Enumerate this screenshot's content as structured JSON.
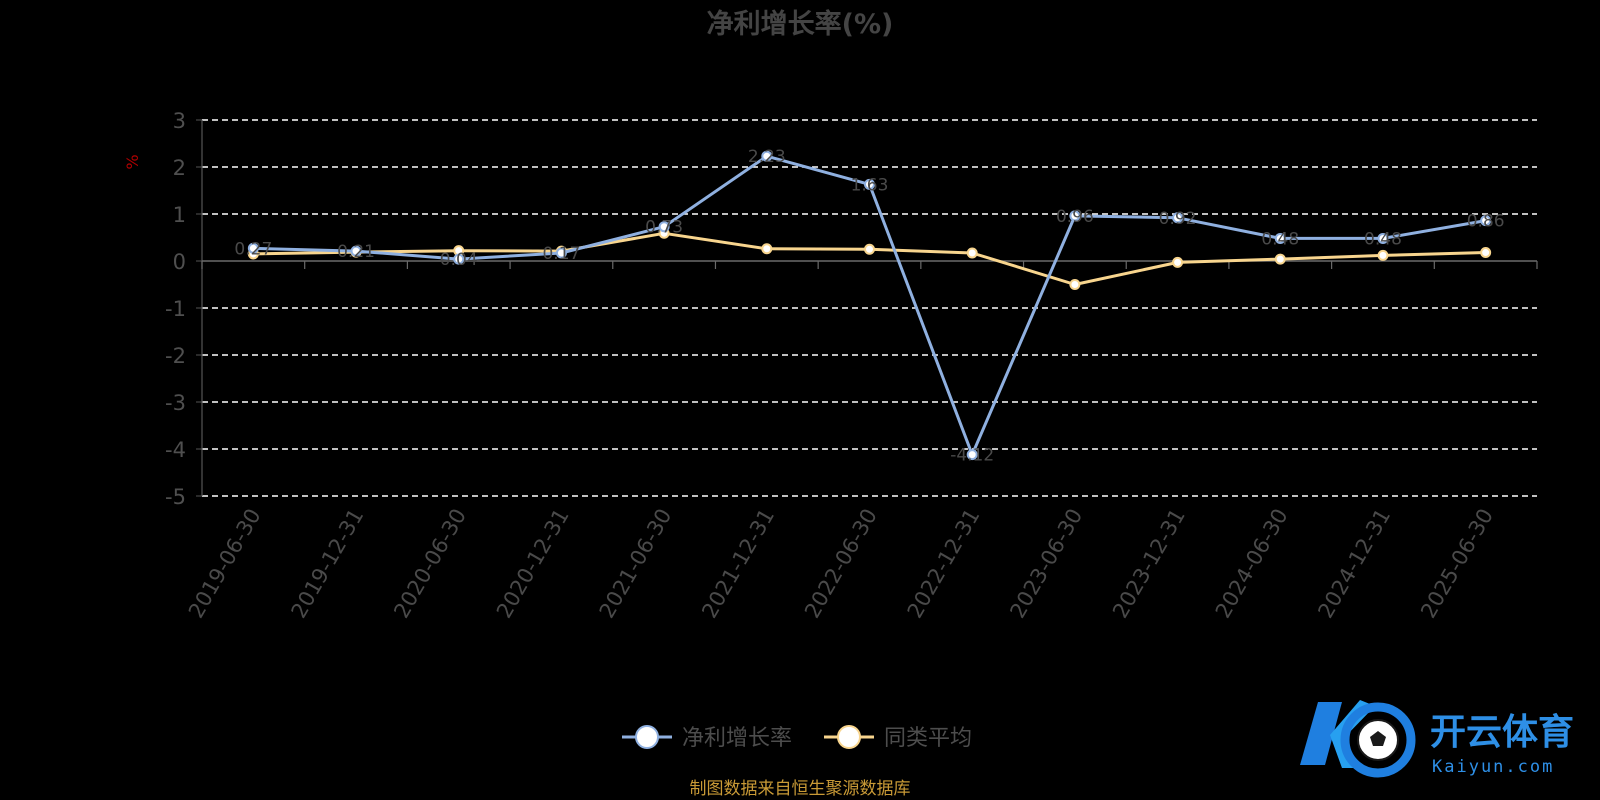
{
  "chart_data": {
    "type": "line",
    "title": "净利增长率(%)",
    "ylabel": "%",
    "xlabel": "",
    "categories": [
      "2019-06-30",
      "2019-12-31",
      "2020-06-30",
      "2020-12-31",
      "2021-06-30",
      "2021-12-31",
      "2022-06-30",
      "2022-12-31",
      "2023-06-30",
      "2023-12-31",
      "2024-06-30",
      "2024-12-31",
      "2025-06-30"
    ],
    "ylim": [
      -5,
      3
    ],
    "yticks": [
      3,
      2,
      1,
      0,
      -1,
      -2,
      -3,
      -4,
      -5
    ],
    "grid": true,
    "legend_position": "bottom-center",
    "series": [
      {
        "name": "净利增长率",
        "color": "#8fb0e0",
        "values": [
          0.27,
          0.21,
          0.04,
          0.17,
          0.73,
          2.23,
          1.63,
          -4.12,
          0.96,
          0.92,
          0.48,
          0.48,
          0.86
        ],
        "labels": [
          "0.27",
          "0.21",
          "0.04",
          "0.17",
          "0.73",
          "2.23",
          "1.63",
          "-4.12",
          "0.96",
          "0.92",
          "0.48",
          "0.48",
          "0.86"
        ]
      },
      {
        "name": "同类平均",
        "color": "#f8d58e",
        "values": [
          0.15,
          0.19,
          0.22,
          0.21,
          0.59,
          0.26,
          0.25,
          0.17,
          -0.5,
          -0.03,
          0.04,
          0.12,
          0.18
        ]
      }
    ]
  },
  "footer": {
    "source": "制图数据来自恒生聚源数据库"
  },
  "watermark": {
    "brand": "开云体育",
    "domain": "Kaiyun.com",
    "color": "#2e8fe6"
  }
}
